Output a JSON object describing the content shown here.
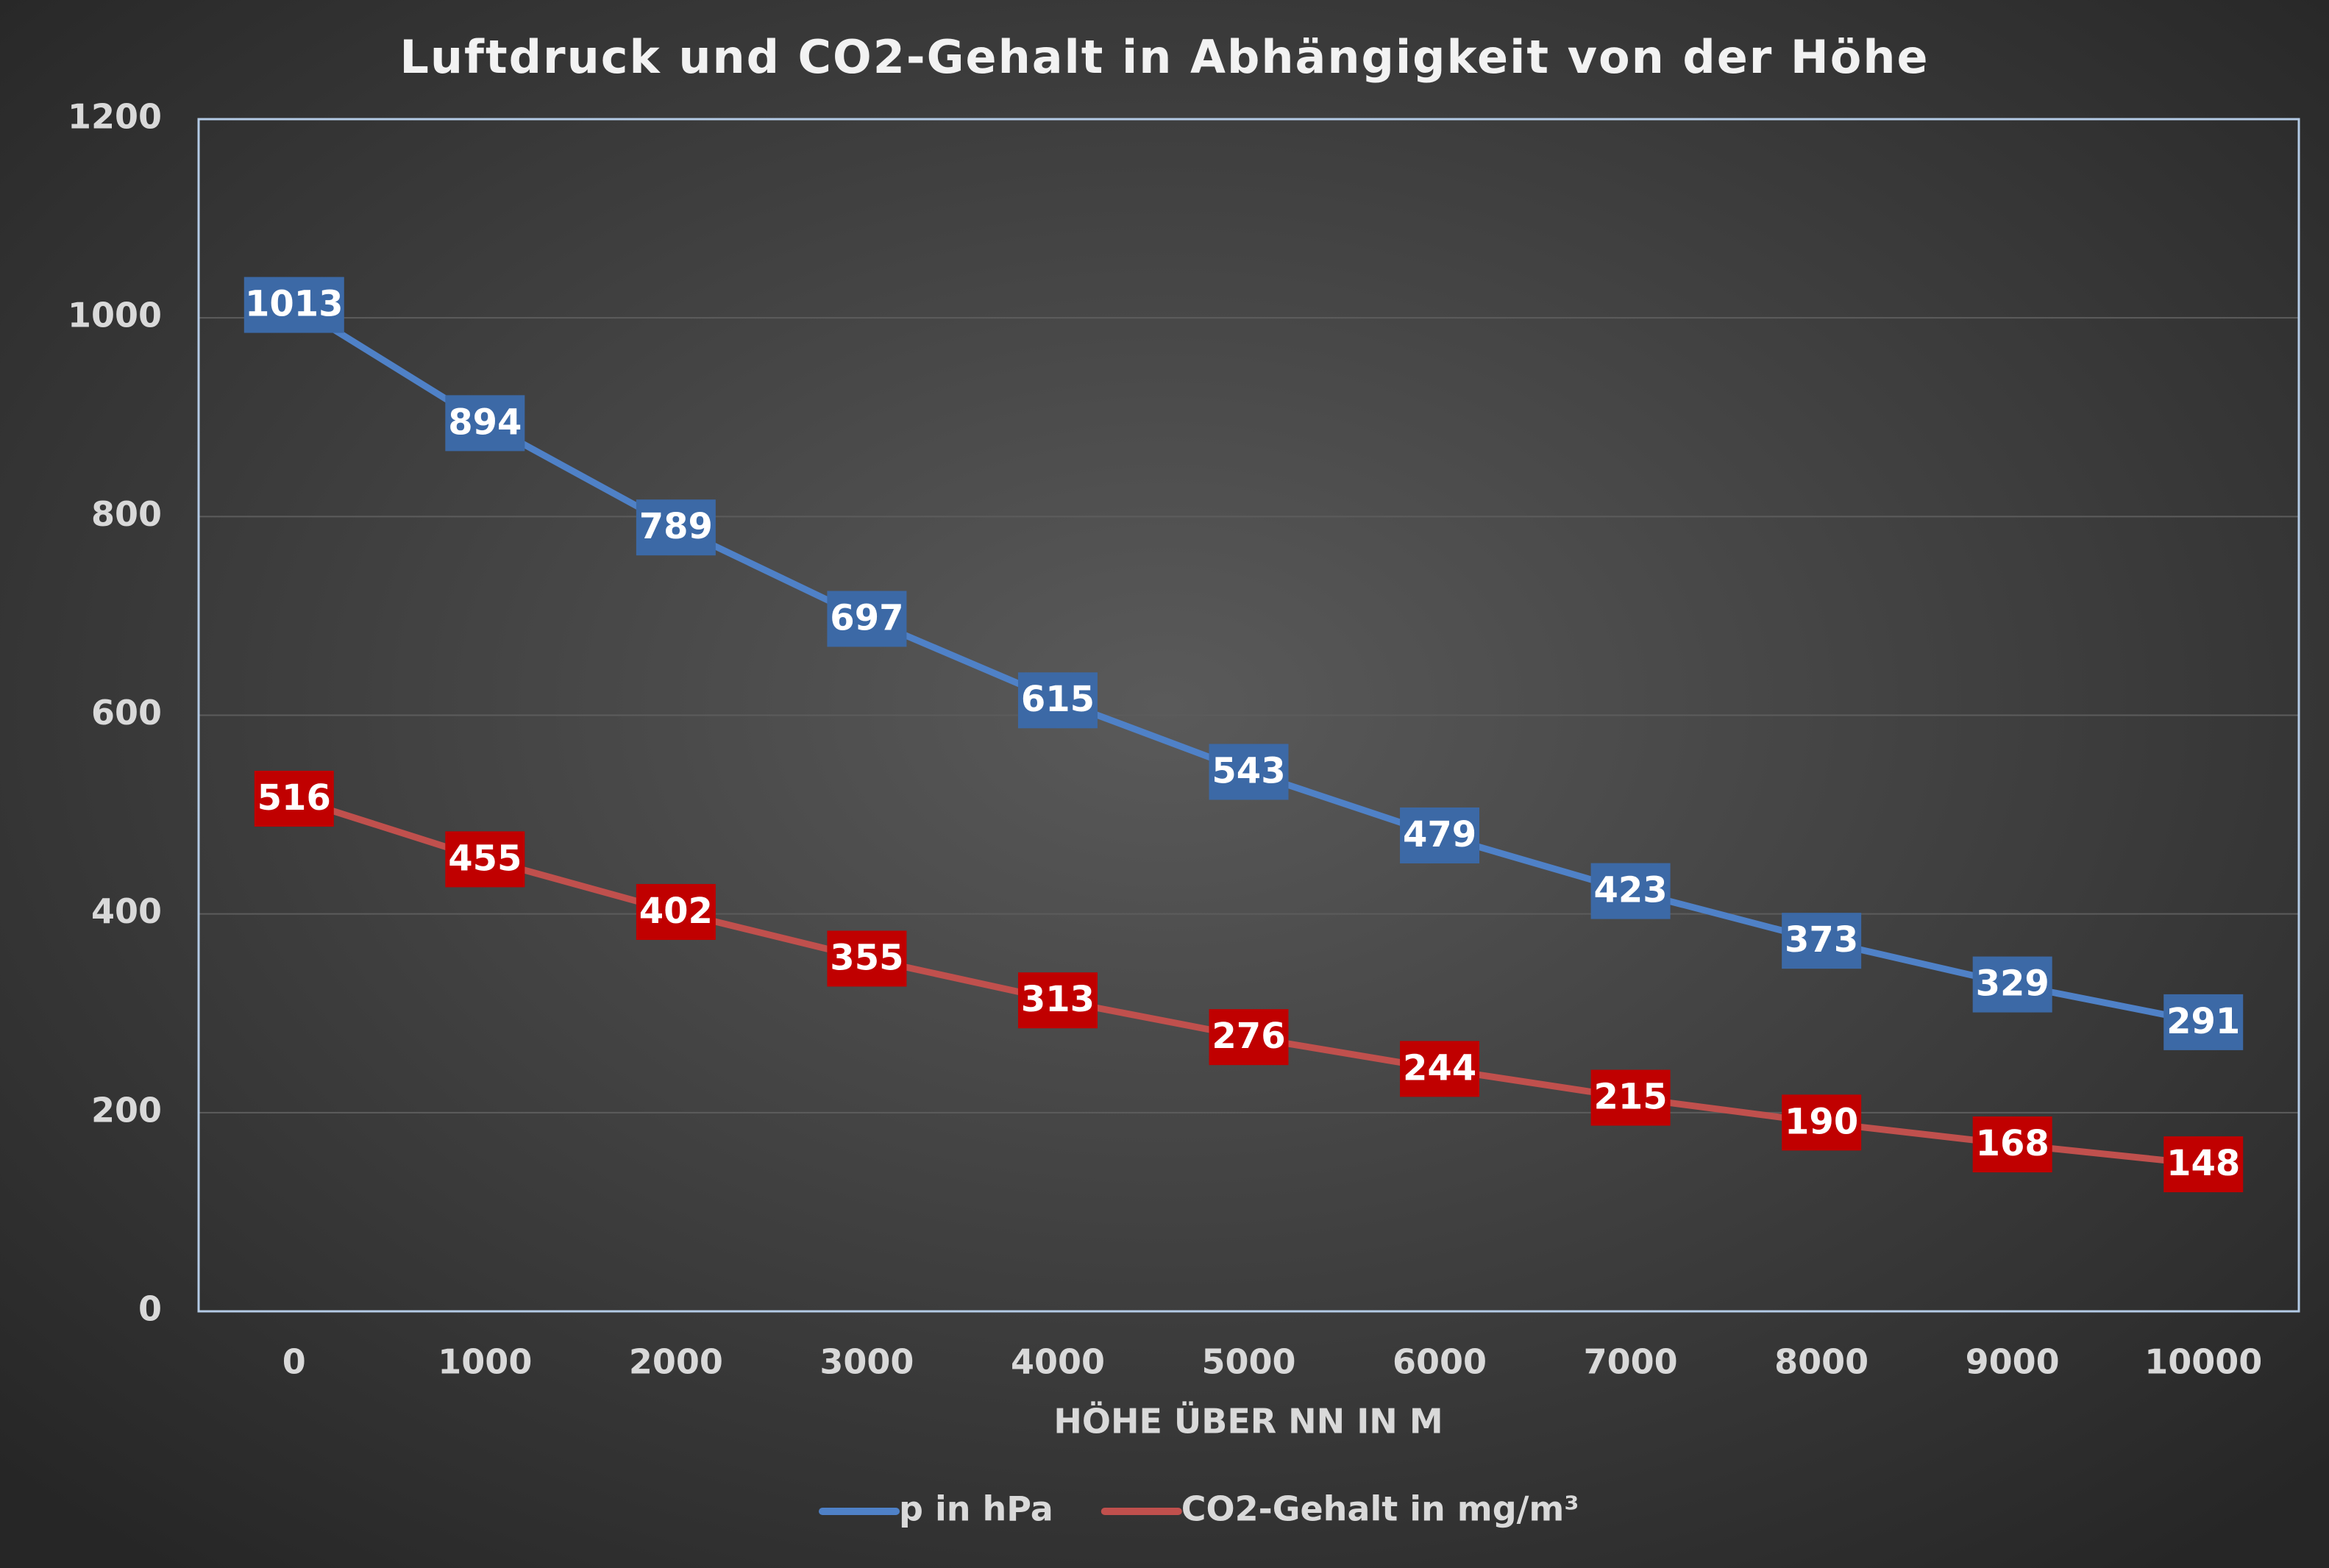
{
  "chart_data": {
    "type": "line",
    "title": "Luftdruck und CO2-Gehalt in Abhängigkeit von der Höhe",
    "x_label": "HÖHE ÜBER NN IN M",
    "categories": [
      "0",
      "1000",
      "2000",
      "3000",
      "4000",
      "5000",
      "6000",
      "7000",
      "8000",
      "9000",
      "10000"
    ],
    "series": [
      {
        "name": "p in hPa",
        "color": "#4f81c7",
        "label_color": "#3c69a6",
        "values": [
          1013,
          894,
          789,
          697,
          615,
          543,
          479,
          423,
          373,
          329,
          291
        ]
      },
      {
        "name": "CO2-Gehalt in mg/m³",
        "color": "#c0504d",
        "label_color": "#c00000",
        "values": [
          516,
          455,
          402,
          355,
          313,
          276,
          244,
          215,
          190,
          168,
          148
        ]
      }
    ],
    "ylim": [
      0,
      1200
    ],
    "yticks": [
      0,
      200,
      400,
      600,
      800,
      1000,
      1200
    ],
    "grid": true,
    "legend": "bottom"
  }
}
